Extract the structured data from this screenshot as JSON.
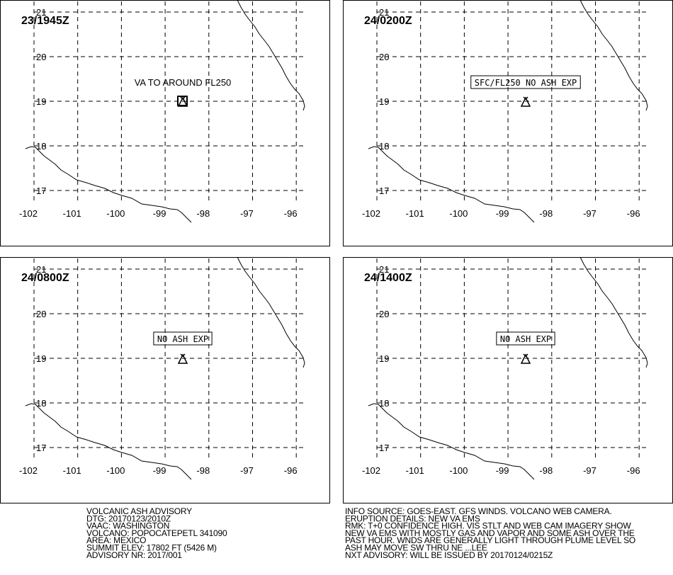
{
  "panels": [
    {
      "time": "23/1945Z",
      "annotation": "VA TO AROUND FL250",
      "boxed": false
    },
    {
      "time": "24/0200Z",
      "annotation": "SFC/FL250 NO ASH EXP",
      "boxed": true
    },
    {
      "time": "24/0800Z",
      "annotation": "NO ASH EXP",
      "boxed": true
    },
    {
      "time": "24/1400Z",
      "annotation": "NO ASH EXP",
      "boxed": true
    }
  ],
  "lat_labels": [
    "21",
    "20",
    "19",
    "18",
    "17"
  ],
  "lon_labels": [
    "-102",
    "-101",
    "-100",
    "-99",
    "-98",
    "-97",
    "-96"
  ],
  "footer_left": [
    "VOLCANIC ASH ADVISORY",
    "DTG: 20170123/2010Z",
    "VAAC: WASHINGTON",
    "VOLCANO: POPOCATEPETL 341090",
    "AREA: MEXICO",
    "SUMMIT ELEV: 17802 FT (5426 M)",
    "ADVISORY NR: 2017/001"
  ],
  "footer_right": [
    "INFO SOURCE: GOES-EAST. GFS WINDS. VOLCANO WEB CAMERA.",
    "ERUPTION DETAILS: NEW VA EMS",
    "RMK: T+0 CONFIDENCE HIGH. VIS STLT AND WEB CAM IMAGERY SHOW",
    "NEW VA EMS WITH MOSTLY GAS AND VAPOR AND SOME ASH OVER THE",
    "PAST HOUR. WNDS ARE GENERALLY LIGHT THROUGH PLUME LEVEL SO",
    "ASH MAY MOVE SW THRU NE ...LEE",
    "NXT ADVISORY: WILL BE ISSUED BY 20170124/0215Z"
  ]
}
